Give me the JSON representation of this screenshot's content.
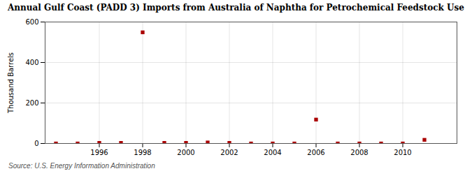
{
  "chart_data": {
    "type": "scatter",
    "title": "Annual Gulf Coast (PADD 3) Imports from Australia of Naphtha for Petrochemical Feedstock Use",
    "ylabel": "Thousand Barrels",
    "source": "Source: U.S. Energy Information Administration",
    "x": [
      1994,
      1995,
      1996,
      1997,
      1998,
      1999,
      2000,
      2001,
      2002,
      2003,
      2004,
      2005,
      2006,
      2007,
      2008,
      2009,
      2010,
      2011
    ],
    "values": [
      0,
      0,
      3,
      3,
      549,
      3,
      3,
      5,
      3,
      0,
      0,
      0,
      118,
      0,
      0,
      0,
      0,
      18
    ],
    "color": "#aa0000",
    "marker": "square",
    "xlim": [
      1993.5,
      2012.5
    ],
    "xticks": [
      1996,
      1998,
      2000,
      2002,
      2004,
      2006,
      2008,
      2010
    ],
    "ylim": [
      0,
      600
    ],
    "yticks": [
      0,
      200,
      400,
      600
    ],
    "grid": true
  }
}
